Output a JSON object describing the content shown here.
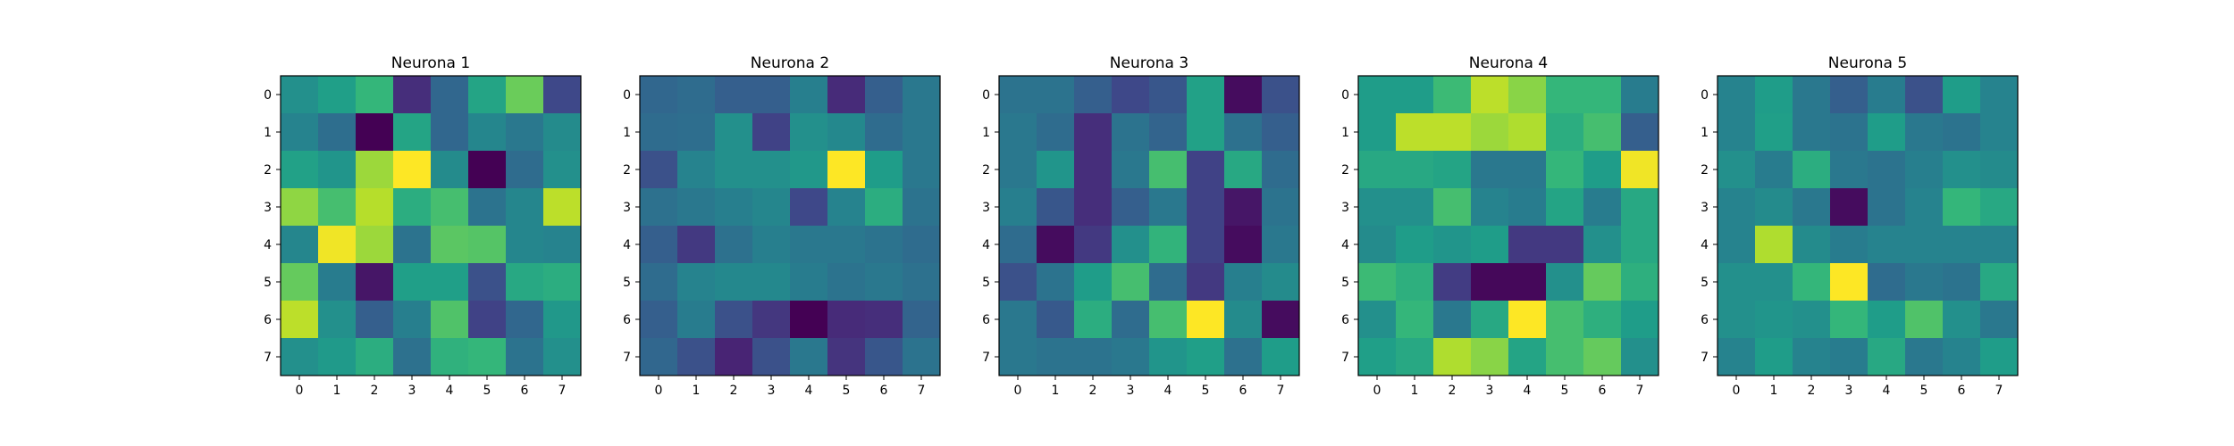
{
  "chart_data": [
    {
      "type": "heatmap",
      "title": "Neurona 1",
      "colormap": "viridis",
      "x_ticks": [
        "0",
        "1",
        "2",
        "3",
        "4",
        "5",
        "6",
        "7"
      ],
      "y_ticks": [
        "0",
        "1",
        "2",
        "3",
        "4",
        "5",
        "6",
        "7"
      ],
      "values": [
        [
          0.5,
          0.56,
          0.66,
          0.13,
          0.33,
          0.58,
          0.77,
          0.22
        ],
        [
          0.45,
          0.36,
          0.0,
          0.58,
          0.33,
          0.46,
          0.4,
          0.48
        ],
        [
          0.57,
          0.52,
          0.85,
          1.0,
          0.48,
          0.0,
          0.35,
          0.5
        ],
        [
          0.83,
          0.7,
          0.89,
          0.62,
          0.7,
          0.38,
          0.46,
          0.9
        ],
        [
          0.46,
          0.98,
          0.85,
          0.38,
          0.74,
          0.73,
          0.46,
          0.45
        ],
        [
          0.76,
          0.42,
          0.06,
          0.56,
          0.56,
          0.25,
          0.6,
          0.62
        ],
        [
          0.9,
          0.5,
          0.3,
          0.43,
          0.72,
          0.2,
          0.33,
          0.53
        ],
        [
          0.5,
          0.54,
          0.62,
          0.37,
          0.64,
          0.66,
          0.38,
          0.5
        ]
      ]
    },
    {
      "type": "heatmap",
      "title": "Neurona 2",
      "colormap": "viridis",
      "x_ticks": [
        "0",
        "1",
        "2",
        "3",
        "4",
        "5",
        "6",
        "7"
      ],
      "y_ticks": [
        "0",
        "1",
        "2",
        "3",
        "4",
        "5",
        "6",
        "7"
      ],
      "values": [
        [
          0.33,
          0.35,
          0.3,
          0.3,
          0.43,
          0.12,
          0.3,
          0.4
        ],
        [
          0.35,
          0.36,
          0.5,
          0.2,
          0.5,
          0.47,
          0.35,
          0.4
        ],
        [
          0.25,
          0.45,
          0.5,
          0.5,
          0.53,
          1.0,
          0.55,
          0.4
        ],
        [
          0.37,
          0.4,
          0.43,
          0.46,
          0.22,
          0.45,
          0.62,
          0.38
        ],
        [
          0.3,
          0.17,
          0.37,
          0.43,
          0.4,
          0.4,
          0.38,
          0.35
        ],
        [
          0.35,
          0.45,
          0.47,
          0.47,
          0.42,
          0.38,
          0.4,
          0.37
        ],
        [
          0.3,
          0.42,
          0.25,
          0.16,
          0.0,
          0.12,
          0.13,
          0.32
        ],
        [
          0.33,
          0.25,
          0.1,
          0.25,
          0.4,
          0.15,
          0.27,
          0.38
        ]
      ]
    },
    {
      "type": "heatmap",
      "title": "Neurona 3",
      "colormap": "viridis",
      "x_ticks": [
        "0",
        "1",
        "2",
        "3",
        "4",
        "5",
        "6",
        "7"
      ],
      "y_ticks": [
        "0",
        "1",
        "2",
        "3",
        "4",
        "5",
        "6",
        "7"
      ],
      "values": [
        [
          0.38,
          0.38,
          0.3,
          0.22,
          0.27,
          0.57,
          0.03,
          0.25
        ],
        [
          0.4,
          0.35,
          0.13,
          0.38,
          0.32,
          0.57,
          0.37,
          0.3
        ],
        [
          0.4,
          0.52,
          0.13,
          0.4,
          0.7,
          0.2,
          0.6,
          0.35
        ],
        [
          0.43,
          0.27,
          0.13,
          0.3,
          0.4,
          0.2,
          0.06,
          0.38
        ],
        [
          0.35,
          0.03,
          0.17,
          0.5,
          0.65,
          0.2,
          0.03,
          0.4
        ],
        [
          0.25,
          0.38,
          0.55,
          0.7,
          0.35,
          0.17,
          0.43,
          0.48
        ],
        [
          0.4,
          0.28,
          0.62,
          0.35,
          0.7,
          1.0,
          0.48,
          0.03
        ],
        [
          0.4,
          0.38,
          0.38,
          0.4,
          0.52,
          0.56,
          0.37,
          0.55
        ]
      ]
    },
    {
      "type": "heatmap",
      "title": "Neurona 4",
      "colormap": "viridis",
      "x_ticks": [
        "0",
        "1",
        "2",
        "3",
        "4",
        "5",
        "6",
        "7"
      ],
      "y_ticks": [
        "0",
        "1",
        "2",
        "3",
        "4",
        "5",
        "6",
        "7"
      ],
      "values": [
        [
          0.55,
          0.55,
          0.68,
          0.9,
          0.82,
          0.66,
          0.66,
          0.42
        ],
        [
          0.55,
          0.9,
          0.9,
          0.85,
          0.88,
          0.62,
          0.7,
          0.3
        ],
        [
          0.6,
          0.6,
          0.58,
          0.4,
          0.4,
          0.66,
          0.55,
          0.98
        ],
        [
          0.5,
          0.5,
          0.7,
          0.45,
          0.42,
          0.58,
          0.42,
          0.6
        ],
        [
          0.48,
          0.55,
          0.52,
          0.55,
          0.17,
          0.17,
          0.5,
          0.6
        ],
        [
          0.68,
          0.63,
          0.18,
          0.02,
          0.02,
          0.5,
          0.76,
          0.63
        ],
        [
          0.5,
          0.66,
          0.4,
          0.6,
          1.0,
          0.7,
          0.63,
          0.55
        ],
        [
          0.56,
          0.6,
          0.88,
          0.82,
          0.58,
          0.7,
          0.76,
          0.5
        ]
      ]
    },
    {
      "type": "heatmap",
      "title": "Neurona 5",
      "colormap": "viridis",
      "x_ticks": [
        "0",
        "1",
        "2",
        "3",
        "4",
        "5",
        "6",
        "7"
      ],
      "y_ticks": [
        "0",
        "1",
        "2",
        "3",
        "4",
        "5",
        "6",
        "7"
      ],
      "values": [
        [
          0.45,
          0.55,
          0.4,
          0.3,
          0.42,
          0.25,
          0.55,
          0.45
        ],
        [
          0.45,
          0.56,
          0.4,
          0.38,
          0.55,
          0.4,
          0.38,
          0.45
        ],
        [
          0.5,
          0.42,
          0.62,
          0.4,
          0.38,
          0.43,
          0.5,
          0.48
        ],
        [
          0.45,
          0.48,
          0.4,
          0.03,
          0.38,
          0.45,
          0.66,
          0.6
        ],
        [
          0.45,
          0.88,
          0.48,
          0.42,
          0.45,
          0.45,
          0.45,
          0.45
        ],
        [
          0.5,
          0.5,
          0.66,
          1.0,
          0.35,
          0.4,
          0.38,
          0.6
        ],
        [
          0.5,
          0.52,
          0.5,
          0.66,
          0.55,
          0.72,
          0.5,
          0.4
        ],
        [
          0.45,
          0.55,
          0.45,
          0.42,
          0.6,
          0.4,
          0.45,
          0.55
        ]
      ]
    }
  ]
}
